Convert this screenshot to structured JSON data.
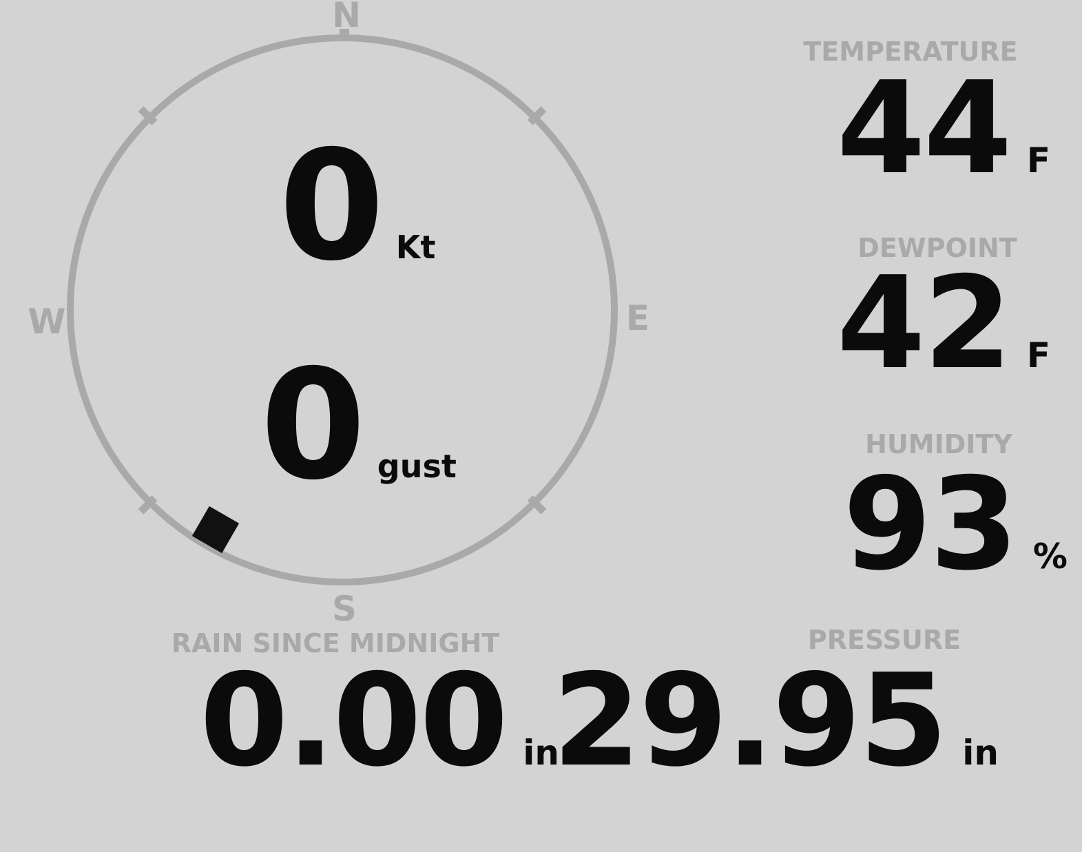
{
  "wind": {
    "speed_value": "0",
    "speed_unit": "Kt",
    "gust_value": "0",
    "gust_unit": "gust",
    "direction_deg": 210,
    "compass_labels": {
      "north": "N",
      "east": "E",
      "south": "S",
      "west": "W"
    }
  },
  "metrics": {
    "temperature": {
      "label": "TEMPERATURE",
      "value": "44",
      "unit": "F"
    },
    "dewpoint": {
      "label": "DEWPOINT",
      "value": "42",
      "unit": "F"
    },
    "humidity": {
      "label": "HUMIDITY",
      "value": "93",
      "unit": "%"
    },
    "pressure": {
      "label": "PRESSURE",
      "value": "29.95",
      "unit": "in"
    },
    "rain": {
      "label": "RAIN SINCE MIDNIGHT",
      "value": "0.00",
      "unit": "in"
    }
  },
  "colors": {
    "background": "#d3d3d3",
    "muted": "#a9a9a9",
    "text": "#0b0b0b",
    "marker": "#111111"
  }
}
